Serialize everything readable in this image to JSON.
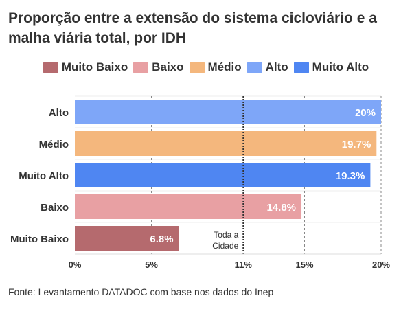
{
  "title": "Proporção entre a extensão do sistema cicloviário e a malha viária total, por IDH",
  "source": "Fonte: Levantamento DATADOC com base nos dados do Inep",
  "legend": [
    {
      "label": "Muito Baixo",
      "color": "#b56a6e"
    },
    {
      "label": "Baixo",
      "color": "#e8a0a3"
    },
    {
      "label": "Médio",
      "color": "#f4b77d"
    },
    {
      "label": "Alto",
      "color": "#7ea6f8"
    },
    {
      "label": "Muito Alto",
      "color": "#4f86f2"
    }
  ],
  "chart_data": {
    "type": "bar",
    "orientation": "horizontal",
    "categories": [
      "Alto",
      "Médio",
      "Muito Alto",
      "Baixo",
      "Muito Baixo"
    ],
    "values": [
      20,
      19.7,
      19.3,
      14.8,
      6.8
    ],
    "value_labels": [
      "20%",
      "19.7%",
      "19.3%",
      "14.8%",
      "6.8%"
    ],
    "colors": [
      "#7ea6f8",
      "#f4b77d",
      "#4f86f2",
      "#e8a0a3",
      "#b56a6e"
    ],
    "xlim": [
      0,
      20
    ],
    "xticks": [
      0,
      5,
      11,
      15,
      20
    ],
    "xtick_labels": [
      "0%",
      "5%",
      "11%",
      "15%",
      "20%"
    ],
    "reference_line": {
      "value": 11,
      "label_lines": [
        "Toda a",
        "Cidade"
      ]
    },
    "grid": true
  }
}
